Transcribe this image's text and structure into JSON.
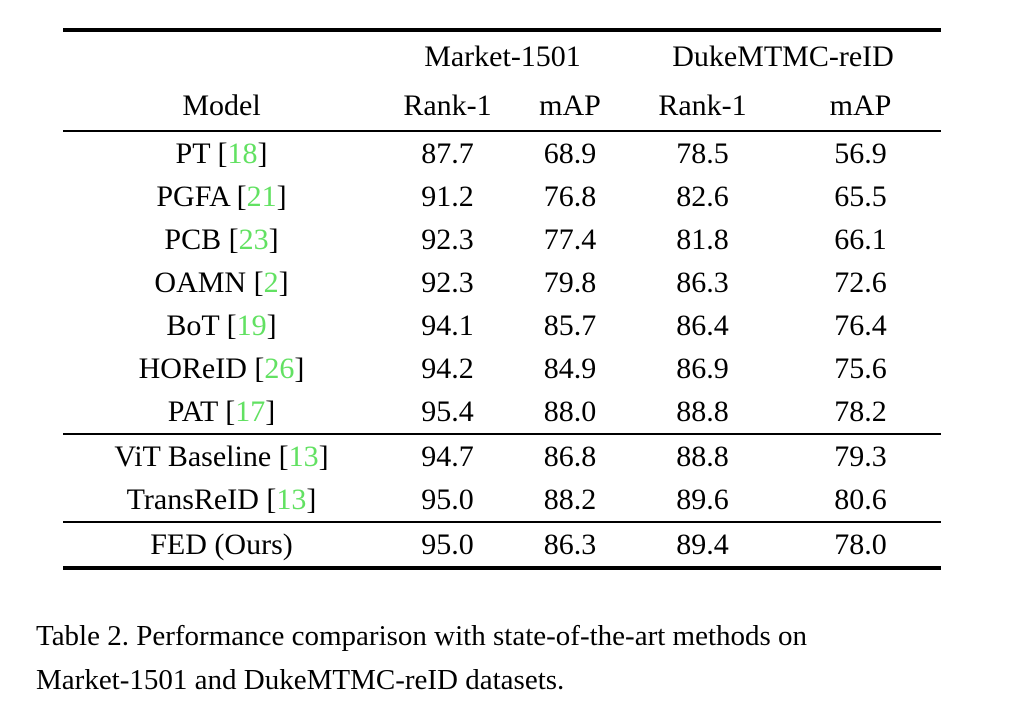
{
  "table": {
    "accent_color": "#62e162",
    "group_headers": [
      {
        "label": "Market-1501",
        "span": 2
      },
      {
        "label": "DukeMTMC-reID",
        "span": 2
      }
    ],
    "columns": [
      "Model",
      "Rank-1",
      "mAP",
      "Rank-1",
      "mAP"
    ],
    "rows": [
      {
        "section": 0,
        "model": "PT",
        "cite": "18",
        "values": [
          "87.7",
          "68.9",
          "78.5",
          "56.9"
        ],
        "bold": [
          false,
          false,
          false,
          false
        ]
      },
      {
        "section": 0,
        "model": "PGFA",
        "cite": "21",
        "values": [
          "91.2",
          "76.8",
          "82.6",
          "65.5"
        ],
        "bold": [
          false,
          false,
          false,
          false
        ]
      },
      {
        "section": 0,
        "model": "PCB",
        "cite": "23",
        "values": [
          "92.3",
          "77.4",
          "81.8",
          "66.1"
        ],
        "bold": [
          false,
          false,
          false,
          false
        ]
      },
      {
        "section": 0,
        "model": "OAMN",
        "cite": "2",
        "values": [
          "92.3",
          "79.8",
          "86.3",
          "72.6"
        ],
        "bold": [
          false,
          false,
          false,
          false
        ]
      },
      {
        "section": 0,
        "model": "BoT",
        "cite": "19",
        "values": [
          "94.1",
          "85.7",
          "86.4",
          "76.4"
        ],
        "bold": [
          false,
          false,
          false,
          false
        ]
      },
      {
        "section": 0,
        "model": "HOReID",
        "cite": "26",
        "values": [
          "94.2",
          "84.9",
          "86.9",
          "75.6"
        ],
        "bold": [
          false,
          false,
          false,
          false
        ]
      },
      {
        "section": 0,
        "model": "PAT",
        "cite": "17",
        "values": [
          "95.4",
          "88.0",
          "88.8",
          "78.2"
        ],
        "bold": [
          true,
          false,
          false,
          false
        ]
      },
      {
        "section": 1,
        "model": "ViT Baseline",
        "cite": "13",
        "values": [
          "94.7",
          "86.8",
          "88.8",
          "79.3"
        ],
        "bold": [
          false,
          false,
          false,
          false
        ]
      },
      {
        "section": 1,
        "model": "TransReID",
        "cite": "13",
        "values": [
          "95.0",
          "88.2",
          "89.6",
          "80.6"
        ],
        "bold": [
          false,
          true,
          true,
          true
        ]
      },
      {
        "section": 2,
        "model": "FED (Ours)",
        "cite": null,
        "values": [
          "95.0",
          "86.3",
          "89.4",
          "78.0"
        ],
        "bold": [
          false,
          false,
          false,
          false
        ]
      }
    ]
  },
  "caption": {
    "lines": [
      "Table 2. Performance comparison with state-of-the-art methods on",
      "Market-1501 and DukeMTMC-reID datasets."
    ]
  }
}
